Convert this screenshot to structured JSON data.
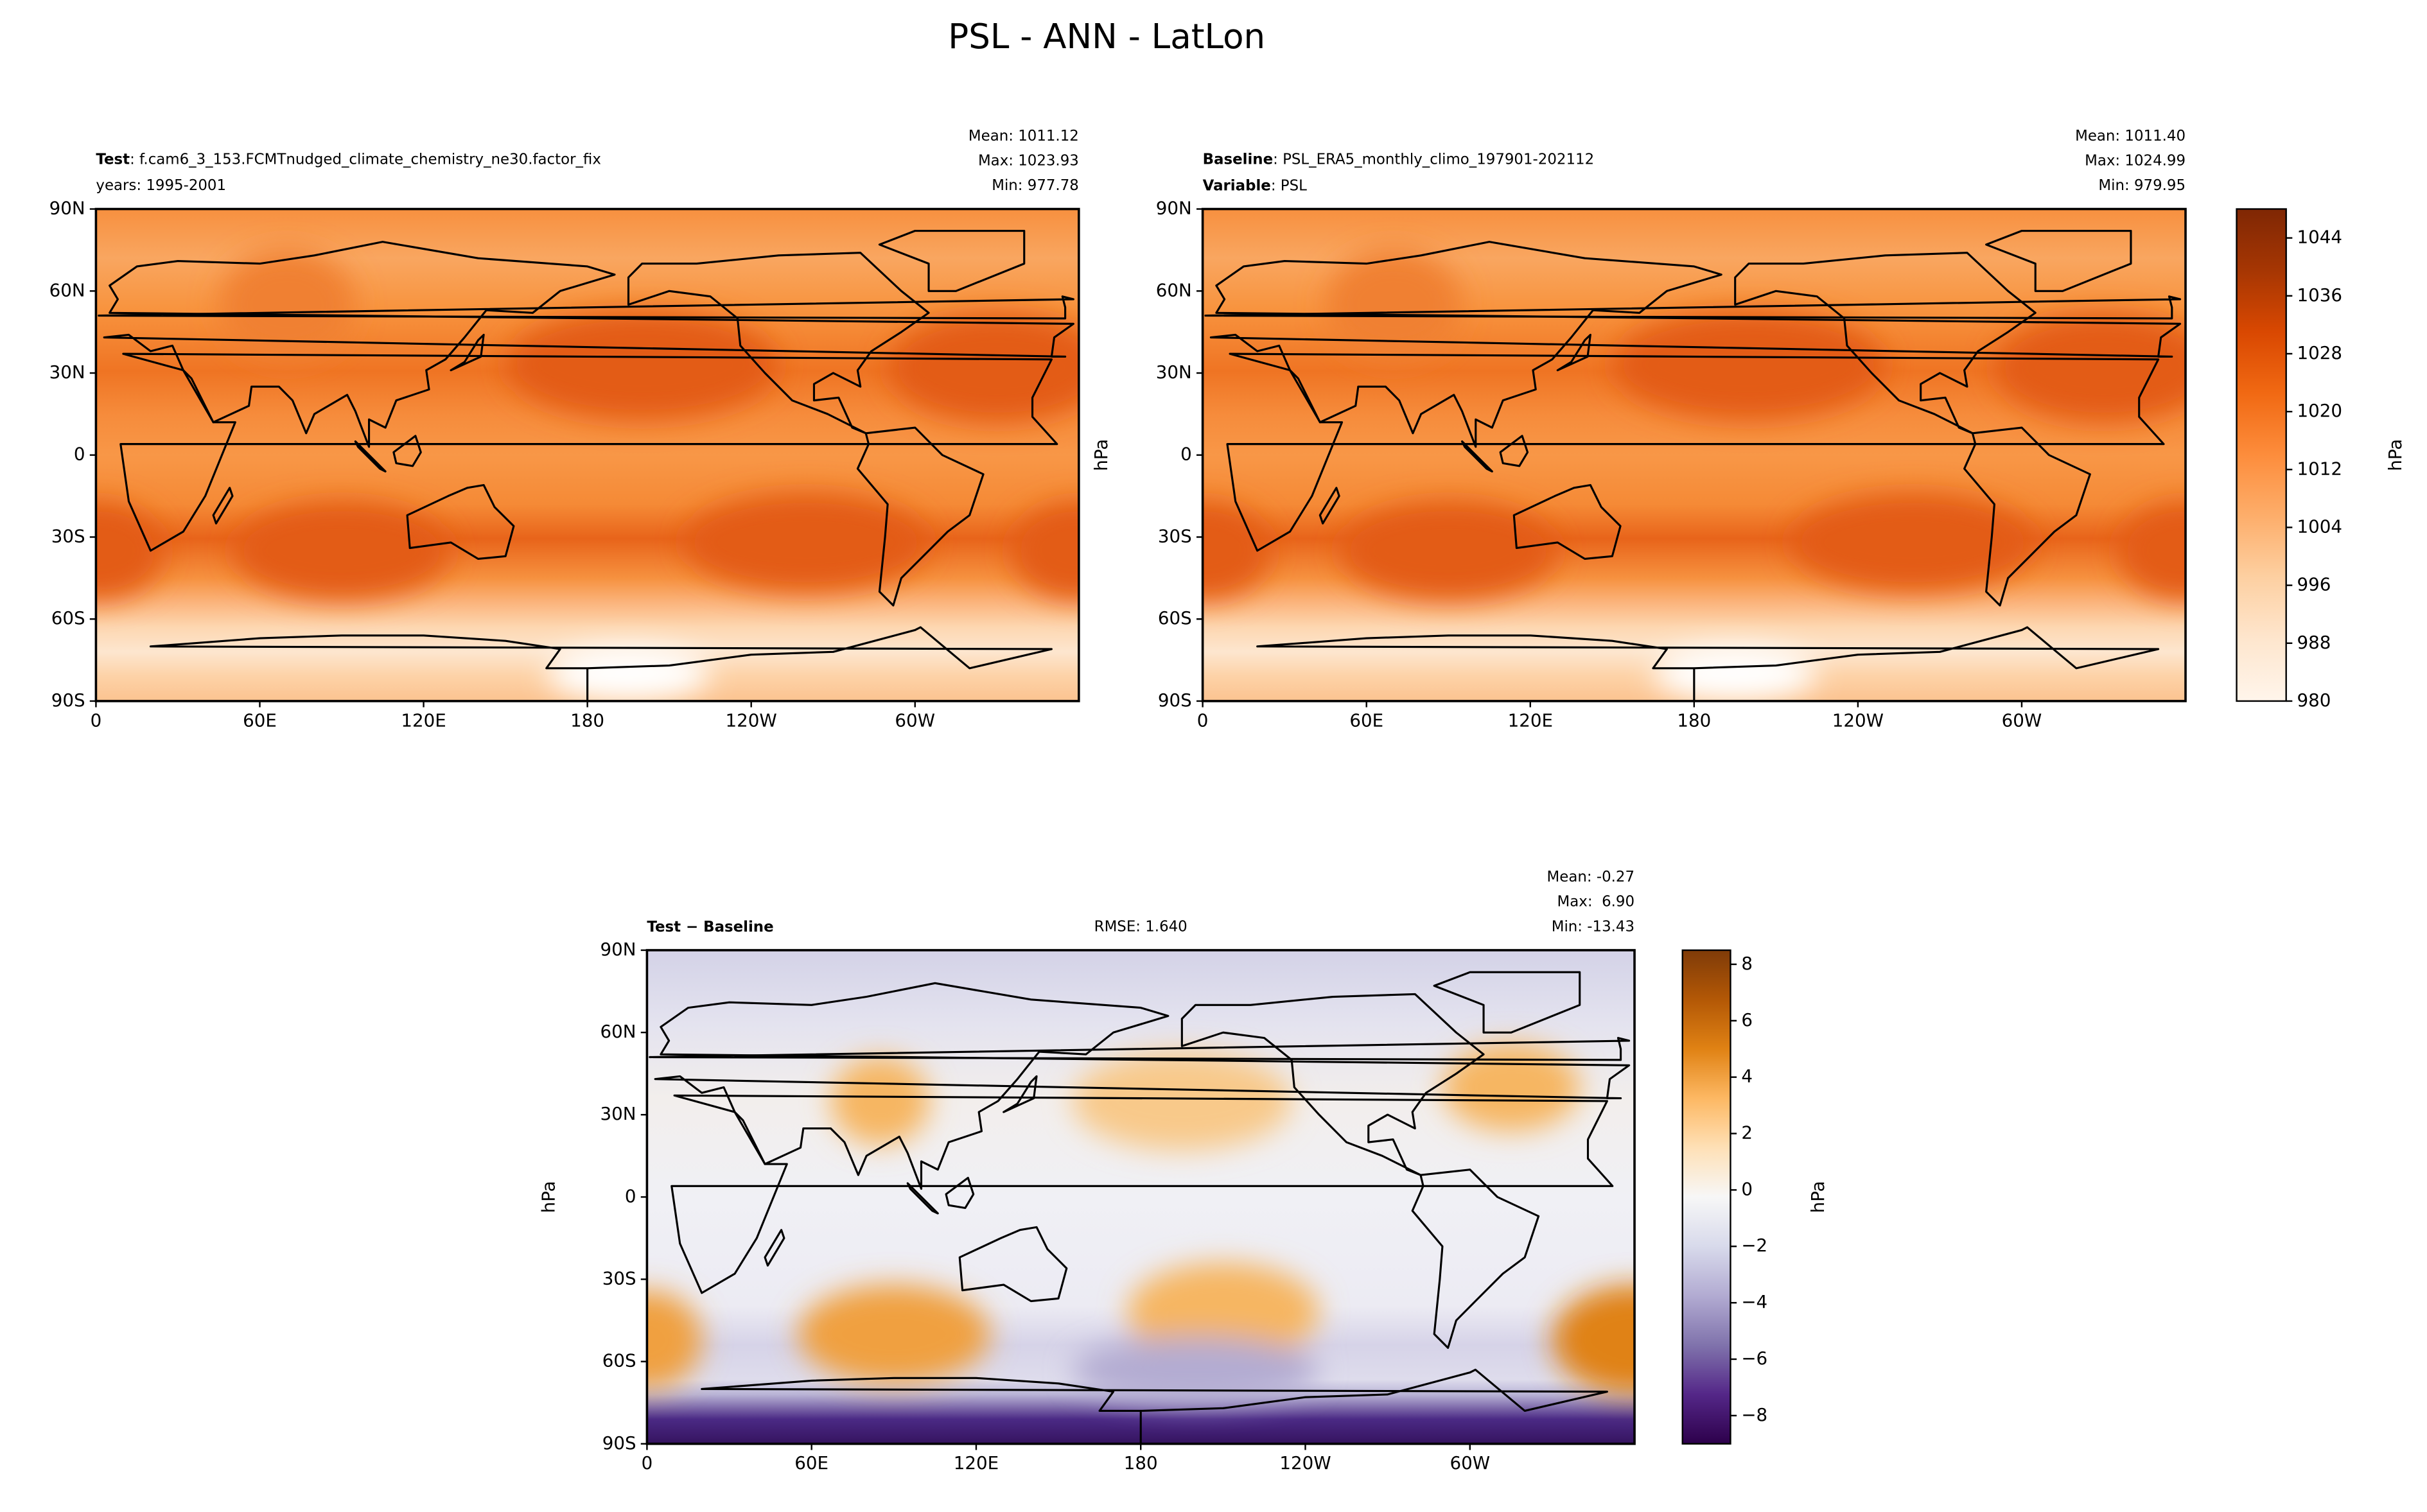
{
  "title": "PSL - ANN - LatLon",
  "chart_data": [
    {
      "type": "contour",
      "left_title": {
        "label": "Test",
        "text": ": f.cam6_3_153.FCMTnudged_climate_chemistry_ne30.factor_fix"
      },
      "left_subtitle": "years: 1995-2001",
      "stats": [
        "Mean: 1011.12",
        "Max: 1023.93",
        "Min: 977.78"
      ],
      "xlim": [
        0,
        360
      ],
      "ylim": [
        -90,
        90
      ],
      "xticks": [
        0,
        {
          "value": 60,
          "label": "60E"
        },
        {
          "value": 120,
          "label": "120E"
        },
        180,
        {
          "value": 240,
          "label": "120W"
        },
        {
          "value": 300,
          "label": "60W"
        }
      ],
      "yticks": [
        {
          "value": 90,
          "label": "90N"
        },
        {
          "value": 60,
          "label": "60N"
        },
        {
          "value": 30,
          "label": "30N"
        },
        0,
        {
          "value": -30,
          "label": "30S"
        },
        {
          "value": -60,
          "label": "60S"
        },
        {
          "value": -90,
          "label": "90S"
        }
      ]
    },
    {
      "type": "contour",
      "left_title": {
        "label": "Baseline",
        "text": ": PSL_ERA5_monthly_climo_197901-202112"
      },
      "left_subtitle": {
        "label": "Variable",
        "text": ": PSL"
      },
      "stats": [
        "Mean: 1011.40",
        "Max: 1024.99",
        "Min: 979.95"
      ],
      "ylabel": "hPa",
      "xlim": [
        0,
        360
      ],
      "ylim": [
        -90,
        90
      ],
      "xticks": [
        0,
        {
          "value": 60,
          "label": "60E"
        },
        {
          "value": 120,
          "label": "120E"
        },
        180,
        {
          "value": 240,
          "label": "120W"
        },
        {
          "value": 300,
          "label": "60W"
        }
      ],
      "yticks": [
        {
          "value": 90,
          "label": "90N"
        },
        {
          "value": 60,
          "label": "60N"
        },
        {
          "value": 30,
          "label": "30N"
        },
        0,
        {
          "value": -30,
          "label": "30S"
        },
        {
          "value": -60,
          "label": "60S"
        },
        {
          "value": -90,
          "label": "90S"
        }
      ],
      "colorbar": {
        "label": "hPa",
        "lim": [
          980,
          1048
        ],
        "ticks": [
          980,
          988,
          996,
          1004,
          1012,
          1020,
          1028,
          1036,
          1044
        ],
        "colors": [
          "#fff5eb",
          "#fee6ce",
          "#fdd0a2",
          "#fdae6b",
          "#fd8d3c",
          "#f16913",
          "#d94801",
          "#a63603",
          "#7f2704"
        ]
      }
    },
    {
      "type": "contour",
      "left_title": {
        "label": "Test − Baseline"
      },
      "center_title": "RMSE: 1.640",
      "stats": [
        "Mean: -0.27",
        "Max:  6.90",
        "Min: -13.43"
      ],
      "ylabel": "hPa",
      "xlim": [
        0,
        360
      ],
      "ylim": [
        -90,
        90
      ],
      "xticks": [
        0,
        {
          "value": 60,
          "label": "60E"
        },
        {
          "value": 120,
          "label": "120E"
        },
        180,
        {
          "value": 240,
          "label": "120W"
        },
        {
          "value": 300,
          "label": "60W"
        }
      ],
      "yticks": [
        {
          "value": 90,
          "label": "90N"
        },
        {
          "value": 60,
          "label": "60N"
        },
        {
          "value": 30,
          "label": "30N"
        },
        0,
        {
          "value": -30,
          "label": "30S"
        },
        {
          "value": -60,
          "label": "60S"
        },
        {
          "value": -90,
          "label": "90S"
        }
      ],
      "colorbar": {
        "label": "hPa",
        "lim": [
          -9,
          8.5
        ],
        "ticks": [
          {
            "value": -8,
            "label": "−8"
          },
          {
            "value": -6,
            "label": "−6"
          },
          {
            "value": -4,
            "label": "−4"
          },
          {
            "value": -2,
            "label": "−2"
          },
          0,
          2,
          4,
          6,
          8
        ],
        "colors": [
          "#2d004b",
          "#542788",
          "#8073ac",
          "#b2abd2",
          "#d8daeb",
          "#f7f7f7",
          "#fee0b6",
          "#fdb863",
          "#e08214",
          "#b35806",
          "#7f3b08"
        ]
      }
    }
  ]
}
